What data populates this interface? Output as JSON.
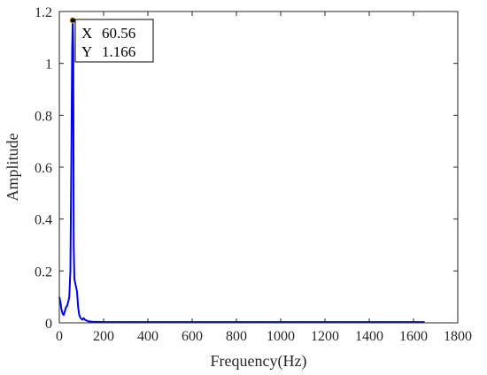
{
  "chart_data": {
    "type": "line",
    "xlabel": "Frequency(Hz)",
    "ylabel": "Amplitude",
    "xlim": [
      0,
      1800
    ],
    "ylim": [
      0,
      1.2
    ],
    "xticks": [
      "0",
      "200",
      "400",
      "600",
      "800",
      "1000",
      "1200",
      "1400",
      "1600",
      "1800"
    ],
    "yticks": [
      "0",
      "0.2",
      "0.4",
      "0.6",
      "0.8",
      "1",
      "1.2"
    ],
    "grid": false,
    "line_color": "#0000ee",
    "series": [
      {
        "x": [
          0,
          5,
          10,
          15,
          20,
          25,
          30,
          35,
          40,
          45,
          50,
          55,
          58,
          60.56,
          63,
          65,
          68,
          70,
          75,
          80,
          85,
          90,
          95,
          100,
          105,
          110,
          115,
          120,
          125,
          130,
          140,
          150,
          170,
          200,
          250,
          300,
          400,
          500,
          600,
          700,
          800,
          900,
          1000,
          1100,
          1200,
          1300,
          1400,
          1500,
          1600,
          1650
        ],
        "y": [
          0.1,
          0.08,
          0.05,
          0.035,
          0.03,
          0.045,
          0.06,
          0.065,
          0.08,
          0.1,
          0.2,
          0.7,
          1.05,
          1.166,
          1.05,
          0.3,
          0.17,
          0.16,
          0.14,
          0.12,
          0.06,
          0.03,
          0.02,
          0.015,
          0.012,
          0.018,
          0.012,
          0.01,
          0.008,
          0.006,
          0.005,
          0.004,
          0.004,
          0.003,
          0.003,
          0.003,
          0.003,
          0.003,
          0.003,
          0.003,
          0.003,
          0.003,
          0.003,
          0.003,
          0.003,
          0.003,
          0.003,
          0.003,
          0.003,
          0.003
        ]
      }
    ],
    "datatip": {
      "x": 60.56,
      "y": 1.166,
      "x_prefix": "X",
      "y_prefix": "Y",
      "x_text": "60.56",
      "y_text": "1.166"
    }
  }
}
